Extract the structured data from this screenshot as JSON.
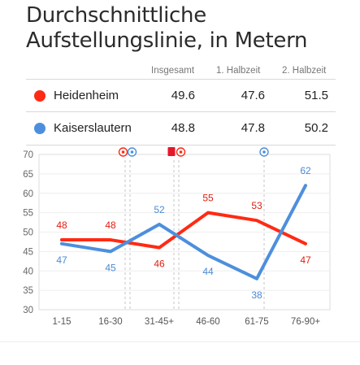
{
  "title_line1": "Durchschnittliche",
  "title_line2": "Aufstellungslinie, in Metern",
  "columns": [
    "Insgesamt",
    "1. Halbzeit",
    "2. Halbzeit"
  ],
  "teams": [
    {
      "name": "Heidenheim",
      "color": "#ff2a14",
      "values": [
        "49.6",
        "47.6",
        "51.5"
      ]
    },
    {
      "name": "Kaiserslautern",
      "color": "#4d8fdc",
      "values": [
        "48.8",
        "47.8",
        "50.2"
      ]
    }
  ],
  "chart_data": {
    "type": "line",
    "categories": [
      "1-15",
      "16-30",
      "31-45+",
      "46-60",
      "61-75",
      "76-90+"
    ],
    "ylim": [
      30,
      70
    ],
    "yticks": [
      30,
      35,
      40,
      45,
      50,
      55,
      60,
      65,
      70
    ],
    "grid": true,
    "series": [
      {
        "name": "Heidenheim",
        "color": "#ff2a14",
        "values": [
          48,
          48,
          46,
          55,
          53,
          47
        ]
      },
      {
        "name": "Kaiserslautern",
        "color": "#4d8fdc",
        "values": [
          47,
          45,
          52,
          44,
          38,
          62
        ]
      }
    ],
    "events": [
      {
        "x": 1.35,
        "icons": [
          "goal-red-icon",
          "goal-blue-icon"
        ]
      },
      {
        "x": 2.35,
        "icons": [
          "red-card-icon",
          "goal-red-icon"
        ]
      },
      {
        "x": 4.15,
        "icons": [
          "goal-blue-icon"
        ]
      }
    ]
  }
}
